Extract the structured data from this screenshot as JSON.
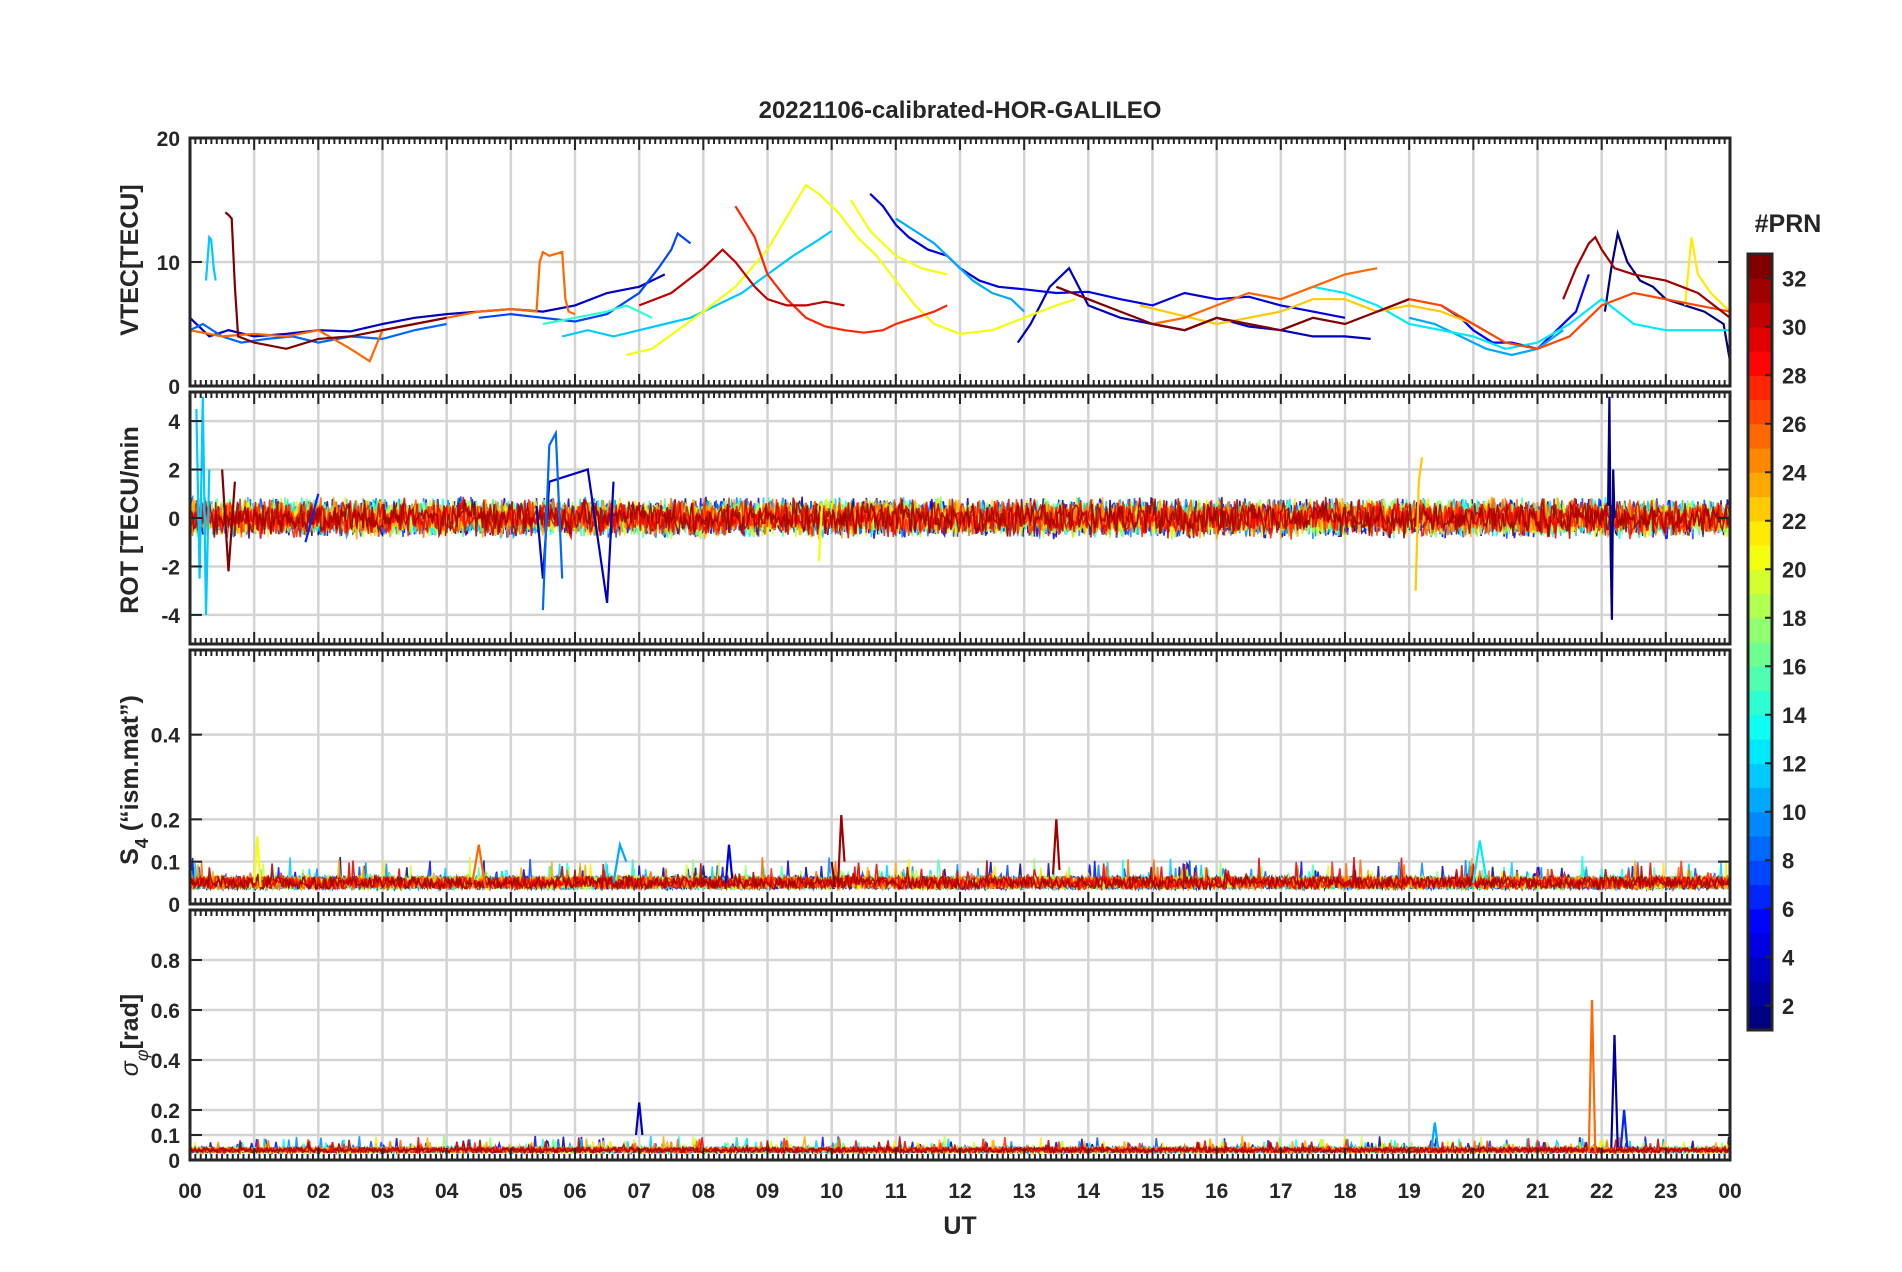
{
  "figure": {
    "title": "20221106-calibrated-HOR-GALILEO",
    "xlabel": "UT",
    "colorbar_label": "#PRN"
  },
  "chart_data": [
    {
      "id": "vtec",
      "type": "line",
      "ylabel": "VTEC[TECU]",
      "ylim": [
        0,
        20
      ],
      "yticks": [
        0,
        10,
        20
      ],
      "grid": true,
      "series": [
        {
          "prn": 1,
          "x": [
            22.05,
            22.15,
            22.25,
            22.4,
            22.6,
            22.8,
            23.0,
            23.3,
            23.6,
            23.9,
            24.0
          ],
          "y": [
            6.0,
            9.5,
            12.3,
            10.0,
            8.5,
            8.0,
            7.0,
            6.5,
            6.0,
            5.0,
            2.0
          ]
        },
        {
          "prn": 3,
          "x": [
            0.0,
            0.3,
            0.6,
            1.0,
            1.5,
            2.0,
            2.5,
            3.0,
            3.5,
            4.0,
            4.5,
            5.0,
            5.5,
            6.0,
            6.5,
            7.0,
            7.4
          ],
          "y": [
            5.5,
            4.0,
            4.5,
            4.0,
            4.2,
            4.5,
            4.4,
            5.0,
            5.5,
            5.8,
            6.0,
            6.2,
            6.0,
            6.5,
            7.5,
            8.0,
            9.0
          ]
        },
        {
          "prn": 3,
          "x": [
            12.9,
            13.1,
            13.4,
            13.7,
            14.0,
            14.5,
            15.0,
            15.5,
            16.0,
            16.5,
            17.0,
            17.5,
            18.0,
            18.4
          ],
          "y": [
            3.5,
            5.0,
            8.0,
            9.5,
            6.5,
            5.5,
            5.0,
            4.5,
            5.5,
            4.8,
            4.5,
            4.0,
            4.0,
            3.8
          ]
        },
        {
          "prn": 4,
          "x": [
            10.6,
            10.8,
            11.0,
            11.2,
            11.5,
            11.8,
            12.0,
            12.3,
            12.6,
            13.0,
            13.5,
            14.0,
            14.5,
            15.0,
            15.5,
            16.0,
            16.5,
            17.0,
            17.5,
            18.0
          ],
          "y": [
            15.5,
            14.5,
            13.0,
            12.0,
            11.0,
            10.5,
            9.5,
            8.5,
            8.0,
            7.8,
            7.5,
            7.6,
            7.0,
            6.5,
            7.5,
            7.0,
            7.2,
            6.5,
            6.0,
            5.5
          ]
        },
        {
          "prn": 5,
          "x": [
            19.5,
            19.8,
            20.0,
            20.3,
            20.6,
            21.0,
            21.3,
            21.6,
            21.8
          ],
          "y": [
            6.5,
            5.5,
            4.5,
            3.5,
            3.5,
            3.0,
            4.5,
            6.0,
            9.0
          ]
        },
        {
          "prn": 7,
          "x": [
            4.5,
            5.0,
            5.5,
            6.0,
            6.5,
            7.0,
            7.3,
            7.5,
            7.6,
            7.8
          ],
          "y": [
            5.5,
            5.8,
            5.5,
            5.2,
            5.8,
            7.5,
            9.5,
            11.0,
            12.3,
            11.5
          ]
        },
        {
          "prn": 8,
          "x": [
            0.0,
            0.2,
            0.5,
            0.8,
            1.2,
            1.6,
            2.0,
            2.5,
            3.0,
            3.5,
            4.0
          ],
          "y": [
            4.5,
            5.0,
            4.0,
            3.5,
            3.8,
            4.0,
            3.5,
            4.0,
            3.8,
            4.5,
            5.0
          ]
        },
        {
          "prn": 10,
          "x": [
            11.0,
            11.3,
            11.6,
            11.9,
            12.2,
            12.5,
            12.8,
            13.0
          ],
          "y": [
            13.5,
            12.5,
            11.5,
            10.0,
            8.5,
            7.5,
            7.0,
            6.0
          ]
        },
        {
          "prn": 10,
          "x": [
            19.0,
            19.4,
            19.8,
            20.2,
            20.6,
            21.0,
            21.4
          ],
          "y": [
            5.5,
            5.0,
            4.0,
            3.0,
            2.5,
            3.0,
            4.5
          ]
        },
        {
          "prn": 11,
          "x": [
            0.25,
            0.3,
            0.33,
            0.37,
            0.4
          ],
          "y": [
            8.5,
            12.0,
            11.8,
            9.5,
            8.5
          ]
        },
        {
          "prn": 11,
          "x": [
            5.8,
            6.2,
            6.6,
            7.0,
            7.4,
            7.8,
            8.2,
            8.6,
            9.0,
            9.4,
            9.8,
            10.0
          ],
          "y": [
            4.0,
            4.5,
            4.0,
            4.5,
            5.0,
            5.5,
            6.5,
            7.5,
            9.0,
            10.5,
            11.8,
            12.5
          ]
        },
        {
          "prn": 12,
          "x": [
            17.5,
            18.0,
            18.5,
            19.0,
            19.5,
            20.0,
            20.5,
            21.0,
            21.5,
            22.0,
            22.5,
            23.0,
            23.5,
            24.0
          ],
          "y": [
            8.0,
            7.5,
            6.5,
            5.0,
            4.5,
            4.0,
            3.0,
            3.5,
            5.0,
            7.0,
            5.0,
            4.5,
            4.5,
            4.5
          ]
        },
        {
          "prn": 14,
          "x": [
            5.5,
            6.0,
            6.5,
            6.8,
            7.0,
            7.2
          ],
          "y": [
            5.0,
            5.5,
            6.0,
            6.5,
            6.0,
            5.5
          ]
        },
        {
          "prn": 20,
          "x": [
            6.8,
            7.2,
            7.6,
            8.0,
            8.5,
            9.0,
            9.4,
            9.6,
            9.8,
            10.1,
            10.4,
            10.7,
            11.0,
            11.3,
            11.6,
            12.0,
            12.5,
            13.0,
            13.5,
            13.8
          ],
          "y": [
            2.5,
            3.0,
            4.5,
            6.0,
            8.0,
            11.0,
            14.5,
            16.2,
            15.5,
            14.0,
            12.0,
            10.5,
            8.5,
            6.5,
            5.0,
            4.2,
            4.5,
            5.5,
            6.5,
            7.0
          ]
        },
        {
          "prn": 20,
          "x": [
            10.3,
            10.6,
            11.0,
            11.4,
            11.8
          ],
          "y": [
            15.0,
            12.5,
            10.5,
            9.5,
            9.0
          ]
        },
        {
          "prn": 21,
          "x": [
            23.3,
            23.4,
            23.5,
            23.7,
            24.0
          ],
          "y": [
            6.5,
            12.0,
            9.0,
            7.5,
            6.0
          ]
        },
        {
          "prn": 22,
          "x": [
            14.8,
            15.2,
            15.6,
            16.0,
            16.5,
            17.0,
            17.5,
            18.0,
            18.5,
            19.0,
            19.5,
            20.0
          ],
          "y": [
            6.5,
            6.0,
            5.5,
            5.0,
            5.5,
            6.0,
            7.0,
            7.0,
            6.0,
            6.5,
            6.0,
            5.0
          ]
        },
        {
          "prn": 25,
          "x": [
            0.0,
            0.5,
            1.0,
            1.5,
            2.0,
            2.5,
            2.8,
            3.0,
            3.5,
            4.0,
            4.5,
            5.0,
            5.4,
            5.45,
            5.5,
            5.6,
            5.8,
            5.85,
            5.9,
            6.0
          ],
          "y": [
            4.5,
            4.0,
            4.2,
            4.0,
            4.5,
            3.0,
            2.0,
            4.5,
            5.0,
            5.5,
            6.0,
            6.2,
            6.0,
            10.0,
            10.8,
            10.5,
            10.8,
            7.0,
            6.0,
            5.8
          ]
        },
        {
          "prn": 25,
          "x": [
            15.0,
            15.5,
            16.0,
            16.5,
            17.0,
            17.5,
            18.0,
            18.5
          ],
          "y": [
            5.0,
            5.5,
            6.5,
            7.5,
            7.0,
            8.0,
            9.0,
            9.5
          ]
        },
        {
          "prn": 26,
          "x": [
            18.5,
            19.0,
            19.5,
            20.0,
            20.5,
            21.0,
            21.5,
            22.0,
            22.5,
            23.0,
            23.5,
            24.0
          ],
          "y": [
            6.0,
            7.0,
            6.5,
            5.0,
            3.5,
            3.0,
            4.0,
            6.5,
            7.5,
            7.0,
            6.5,
            6.0
          ]
        },
        {
          "prn": 27,
          "x": [
            8.5,
            8.8,
            9.0,
            9.3,
            9.6,
            9.9,
            10.2,
            10.5,
            10.8,
            11.0,
            11.3,
            11.6,
            11.8
          ],
          "y": [
            14.5,
            12.0,
            9.0,
            7.0,
            5.5,
            4.8,
            4.5,
            4.3,
            4.5,
            5.0,
            5.5,
            6.0,
            6.5
          ]
        },
        {
          "prn": 30,
          "x": [
            7.0,
            7.5,
            8.0,
            8.3,
            8.5,
            8.8,
            9.0,
            9.3,
            9.6,
            9.9,
            10.2
          ],
          "y": [
            6.5,
            7.5,
            9.5,
            11.0,
            10.0,
            8.0,
            7.0,
            6.5,
            6.5,
            6.8,
            6.5
          ]
        },
        {
          "prn": 31,
          "x": [
            21.4,
            21.6,
            21.8,
            21.9,
            22.0,
            22.2,
            22.5,
            23.0,
            23.5,
            24.0
          ],
          "y": [
            7.0,
            9.5,
            11.5,
            12.0,
            11.0,
            9.5,
            9.0,
            8.5,
            7.5,
            5.5
          ]
        },
        {
          "prn": 32,
          "x": [
            0.55,
            0.6,
            0.65,
            0.7,
            0.75,
            1.0,
            1.5,
            2.0,
            2.5,
            3.0,
            3.5,
            4.0
          ],
          "y": [
            14.0,
            13.8,
            13.5,
            8.0,
            4.0,
            3.5,
            3.0,
            3.8,
            4.0,
            4.5,
            5.0,
            5.5
          ]
        },
        {
          "prn": 32,
          "x": [
            13.5,
            14.0,
            14.5,
            15.0,
            15.5,
            16.0,
            16.5,
            17.0,
            17.5,
            18.0,
            18.5,
            19.0
          ],
          "y": [
            8.0,
            7.0,
            6.0,
            5.0,
            4.5,
            5.5,
            5.0,
            4.5,
            5.5,
            5.0,
            6.0,
            7.0
          ]
        }
      ]
    },
    {
      "id": "rot",
      "type": "line",
      "ylabel": "ROT [TECU/min",
      "ylim": [
        -5.2,
        5.2
      ],
      "yticks": [
        -4,
        -2,
        0,
        2,
        4
      ],
      "grid": true,
      "series": [
        {
          "prn": 1,
          "x": [
            22.1,
            22.12,
            22.14,
            22.16,
            22.18,
            22.2
          ],
          "y": [
            0.5,
            5.0,
            -1.5,
            -4.2,
            2.0,
            0.0
          ]
        },
        {
          "prn": 3,
          "x": [
            5.4,
            5.5,
            5.6,
            6.2,
            6.5,
            6.6
          ],
          "y": [
            0.5,
            -2.5,
            1.5,
            2.0,
            -3.5,
            1.5
          ]
        },
        {
          "prn": 6,
          "x": [
            1.8,
            2.0
          ],
          "y": [
            -1.0,
            1.0
          ]
        },
        {
          "prn": 8,
          "x": [
            5.5,
            5.6,
            5.7,
            5.8
          ],
          "y": [
            -3.8,
            3.0,
            3.5,
            -2.5
          ]
        },
        {
          "prn": 11,
          "x": [
            0.1,
            0.15,
            0.2,
            0.25,
            0.3
          ],
          "y": [
            4.5,
            -2.5,
            5.0,
            -4.0,
            2.0
          ]
        },
        {
          "prn": 20,
          "x": [
            9.8,
            9.85
          ],
          "y": [
            -1.8,
            0.5
          ]
        },
        {
          "prn": 22,
          "x": [
            19.1,
            19.15,
            19.2
          ],
          "y": [
            -3.0,
            1.5,
            2.5
          ]
        },
        {
          "prn": 32,
          "x": [
            0.5,
            0.6,
            0.7
          ],
          "y": [
            2.0,
            -2.2,
            1.5
          ]
        }
      ]
    },
    {
      "id": "s4",
      "type": "line",
      "ylabel": "S4 (\"ism.mat\")",
      "ylim": [
        0,
        0.6
      ],
      "yticks": [
        0,
        0.1,
        0.2,
        0.4
      ],
      "grid": true,
      "series": [
        {
          "prn": 4,
          "x": [
            8.35,
            8.4,
            8.45
          ],
          "y": [
            0.05,
            0.14,
            0.06
          ]
        },
        {
          "prn": 10,
          "x": [
            6.6,
            6.7,
            6.8
          ],
          "y": [
            0.05,
            0.14,
            0.1
          ]
        },
        {
          "prn": 12,
          "x": [
            20.0,
            20.1,
            20.2
          ],
          "y": [
            0.05,
            0.15,
            0.06
          ]
        },
        {
          "prn": 20,
          "x": [
            1.0,
            1.05,
            1.1
          ],
          "y": [
            0.05,
            0.16,
            0.04
          ]
        },
        {
          "prn": 25,
          "x": [
            4.4,
            4.5,
            4.6
          ],
          "y": [
            0.05,
            0.14,
            0.04
          ]
        },
        {
          "prn": 31,
          "x": [
            10.1,
            10.15,
            10.2
          ],
          "y": [
            0.05,
            0.21,
            0.1
          ]
        },
        {
          "prn": 31,
          "x": [
            13.45,
            13.5,
            13.55
          ],
          "y": [
            0.07,
            0.2,
            0.08
          ]
        },
        {
          "prn": 32,
          "x": [
            10.0,
            10.05
          ],
          "y": [
            0.1,
            0.04
          ]
        }
      ]
    },
    {
      "id": "sigma_phi",
      "type": "line",
      "ylabel": "σφ[rad]",
      "ylim": [
        0,
        1.0
      ],
      "yticks": [
        0,
        0.1,
        0.2,
        0.4,
        0.6,
        0.8
      ],
      "grid": true,
      "series": [
        {
          "prn": 2,
          "x": [
            22.15,
            22.2,
            22.25
          ],
          "y": [
            0.05,
            0.5,
            0.05
          ]
        },
        {
          "prn": 3,
          "x": [
            6.95,
            7.0,
            7.05
          ],
          "y": [
            0.1,
            0.23,
            0.1
          ]
        },
        {
          "prn": 6,
          "x": [
            22.3,
            22.35,
            22.4
          ],
          "y": [
            0.05,
            0.2,
            0.05
          ]
        },
        {
          "prn": 10,
          "x": [
            19.35,
            19.4,
            19.45
          ],
          "y": [
            0.05,
            0.15,
            0.05
          ]
        },
        {
          "prn": 25,
          "x": [
            21.8,
            21.85,
            21.9
          ],
          "y": [
            0.03,
            0.64,
            0.03
          ]
        }
      ]
    }
  ],
  "xaxis": {
    "range": [
      0,
      24
    ],
    "tick_labels": [
      "00",
      "01",
      "02",
      "03",
      "04",
      "05",
      "06",
      "07",
      "08",
      "09",
      "10",
      "11",
      "12",
      "13",
      "14",
      "15",
      "16",
      "17",
      "18",
      "19",
      "20",
      "21",
      "22",
      "23",
      "00"
    ]
  },
  "colorbar": {
    "label": "#PRN",
    "range": [
      1,
      33
    ],
    "tick_labels": [
      "2",
      "4",
      "6",
      "8",
      "10",
      "12",
      "14",
      "16",
      "18",
      "20",
      "22",
      "24",
      "26",
      "28",
      "30",
      "32"
    ],
    "tick_values": [
      2,
      4,
      6,
      8,
      10,
      12,
      14,
      16,
      18,
      20,
      22,
      24,
      26,
      28,
      30,
      32
    ]
  }
}
